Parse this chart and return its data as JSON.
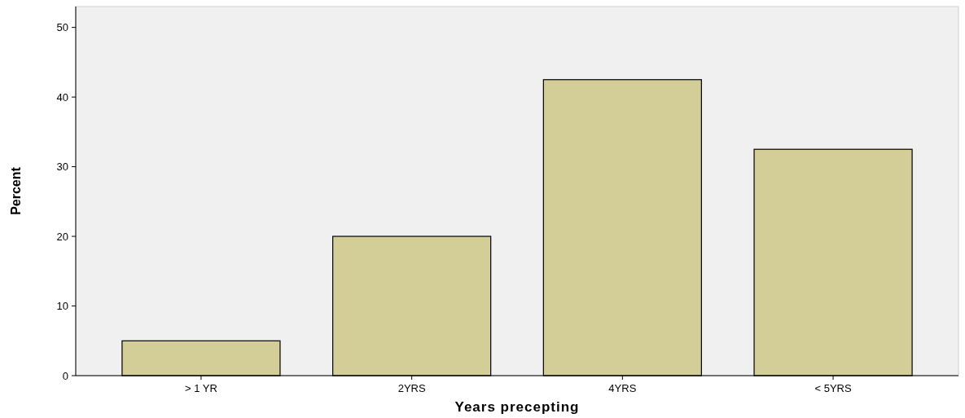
{
  "chart_data": {
    "type": "bar",
    "xlabel": "Years precepting",
    "ylabel": "Percent",
    "categories": [
      "> 1 YR",
      "2YRS",
      "4YRS",
      "< 5YRS"
    ],
    "values": [
      5,
      20,
      42.5,
      32.5
    ],
    "color": "#d3ce97",
    "ylim": [
      0,
      53
    ],
    "yticks": [
      0,
      10,
      20,
      30,
      40,
      50
    ],
    "grid": false
  }
}
